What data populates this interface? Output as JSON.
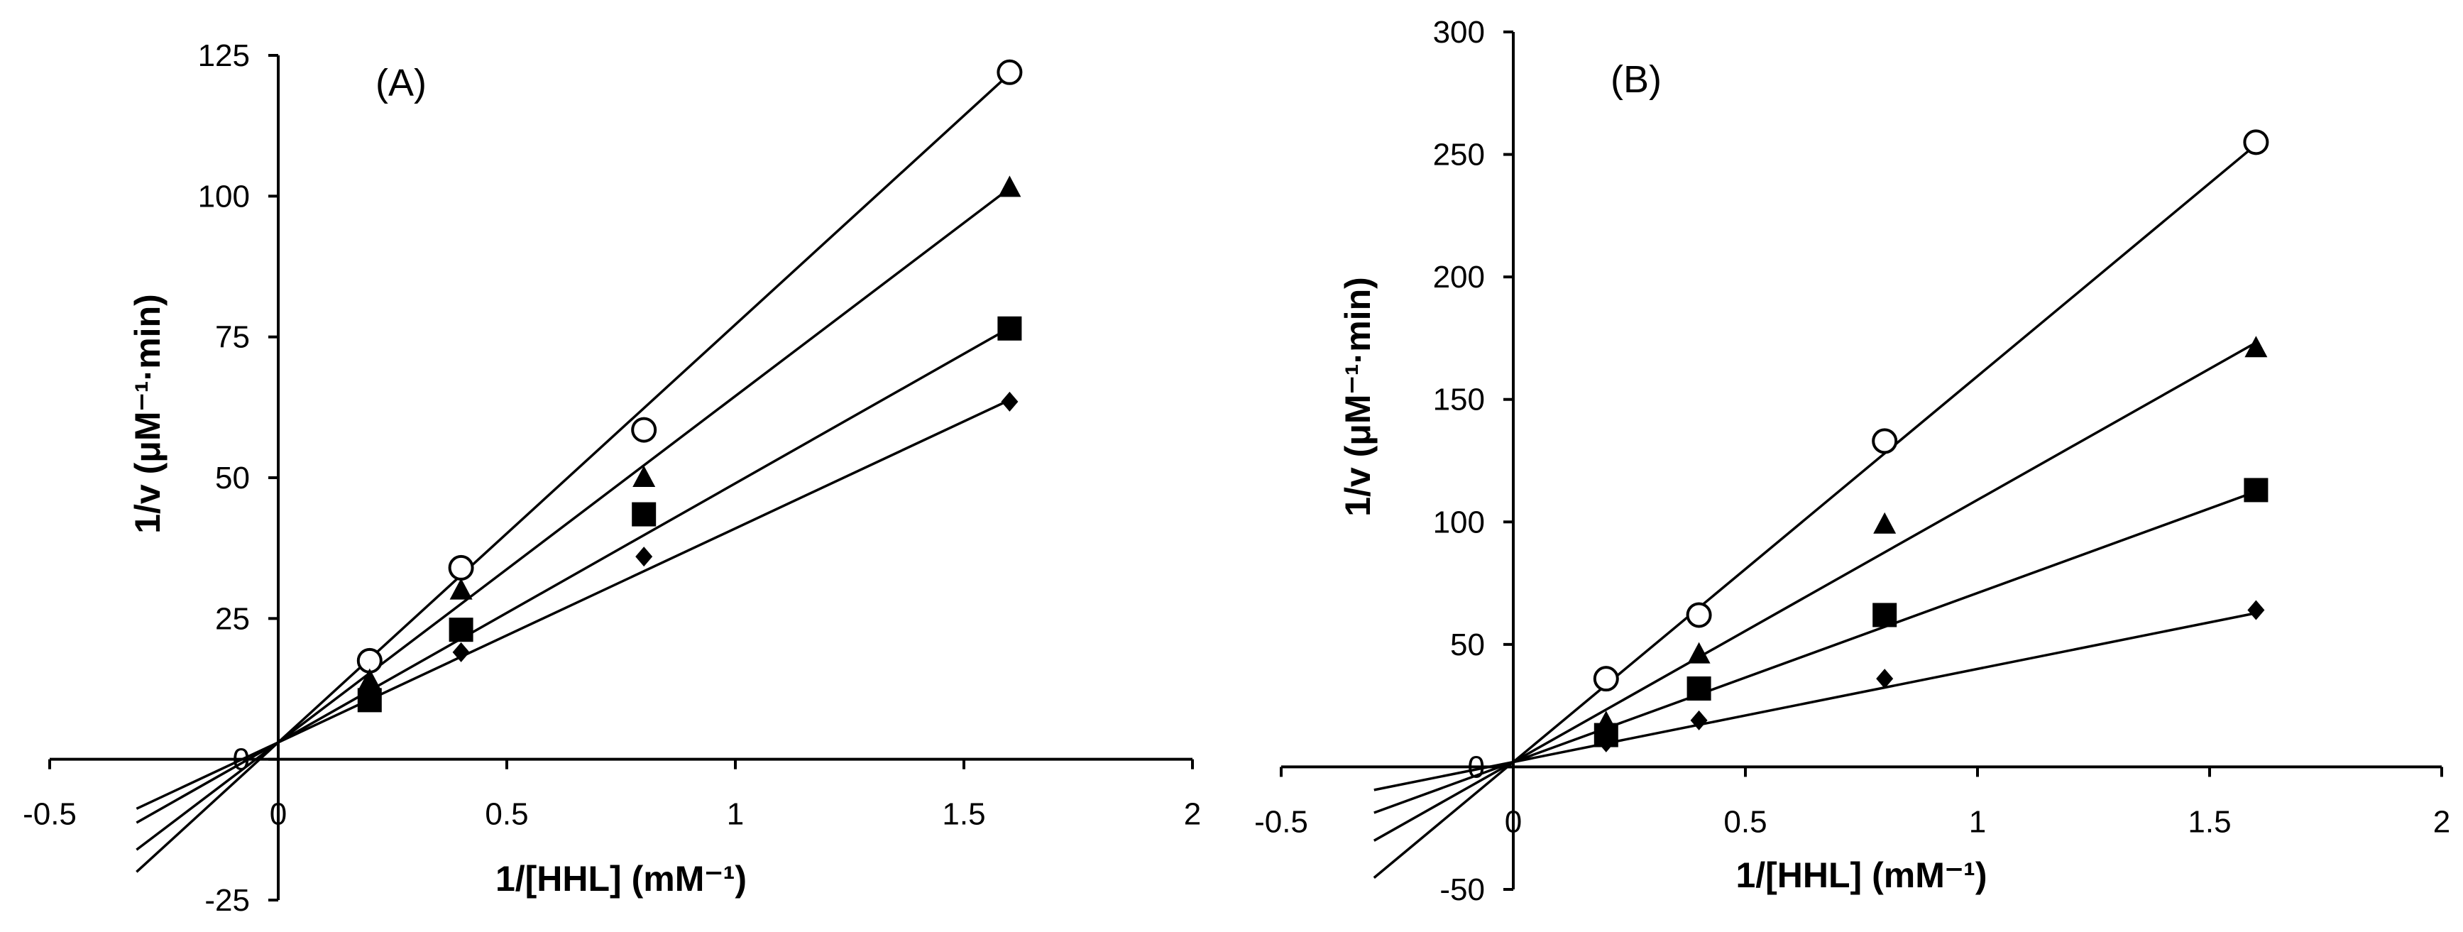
{
  "chart_data": [
    {
      "type": "scatter",
      "panel_label": "(A)",
      "xlabel": "1/[HHL] (mM⁻¹)",
      "ylabel": "1/v (μM⁻¹·min)",
      "xlim": [
        -0.5,
        2
      ],
      "ylim": [
        -25,
        125
      ],
      "x_ticks": [
        -0.5,
        0,
        0.5,
        1,
        1.5,
        2
      ],
      "x_tick_labels": [
        "-0.5",
        "0",
        "0.5",
        "1",
        "1.5",
        "2"
      ],
      "y_ticks": [
        -25,
        0,
        25,
        50,
        75,
        100,
        125
      ],
      "y_tick_labels": [
        "-25",
        "0",
        "25",
        "50",
        "75",
        "100",
        "125"
      ],
      "x": [
        0.2,
        0.4,
        0.8,
        1.6
      ],
      "series": [
        {
          "name": "open circle",
          "marker": "circle-open",
          "values": [
            17.5,
            34,
            58.5,
            122
          ],
          "fit": {
            "slope": 74.2,
            "intercept": 3.0,
            "x_start": -0.31
          }
        },
        {
          "name": "triangle",
          "marker": "triangle",
          "values": [
            14,
            30,
            50,
            101.5
          ],
          "fit": {
            "slope": 61.5,
            "intercept": 3.0,
            "x_start": -0.31
          }
        },
        {
          "name": "square",
          "marker": "square",
          "values": [
            10.5,
            23,
            43.5,
            76.5
          ],
          "fit": {
            "slope": 46.0,
            "intercept": 3.0,
            "x_start": -0.31
          }
        },
        {
          "name": "diamond",
          "marker": "diamond",
          "values": [
            11.5,
            19,
            36,
            63.5
          ],
          "fit": {
            "slope": 38.0,
            "intercept": 3.0,
            "x_start": -0.31
          }
        }
      ]
    },
    {
      "type": "scatter",
      "panel_label": "(B)",
      "xlabel": "1/[HHL] (mM⁻¹)",
      "ylabel": "1/v (μM⁻¹·min)",
      "xlim": [
        -0.5,
        2
      ],
      "ylim": [
        -50,
        300
      ],
      "x_ticks": [
        -0.5,
        0,
        0.5,
        1,
        1.5,
        2
      ],
      "x_tick_labels": [
        "-0.5",
        "0",
        "0.5",
        "1",
        "1.5",
        "2"
      ],
      "y_ticks": [
        -50,
        0,
        50,
        100,
        150,
        200,
        250,
        300
      ],
      "y_tick_labels": [
        "-50",
        "0",
        "50",
        "100",
        "150",
        "200",
        "250",
        "300"
      ],
      "x": [
        0.2,
        0.4,
        0.8,
        1.6
      ],
      "series": [
        {
          "name": "open circle",
          "marker": "circle-open",
          "values": [
            36,
            62,
            133,
            255
          ],
          "fit": {
            "slope": 157.5,
            "intercept": 2.0,
            "x_start": -0.3
          }
        },
        {
          "name": "triangle",
          "marker": "triangle",
          "values": [
            18,
            46,
            99,
            171
          ],
          "fit": {
            "slope": 107.0,
            "intercept": 2.0,
            "x_start": -0.3
          }
        },
        {
          "name": "square",
          "marker": "square",
          "values": [
            13,
            32,
            62,
            113
          ],
          "fit": {
            "slope": 69.0,
            "intercept": 2.0,
            "x_start": -0.3
          }
        },
        {
          "name": "diamond",
          "marker": "diamond",
          "values": [
            10,
            19,
            36,
            64
          ],
          "fit": {
            "slope": 38.0,
            "intercept": 2.0,
            "x_start": -0.3
          }
        }
      ]
    }
  ]
}
